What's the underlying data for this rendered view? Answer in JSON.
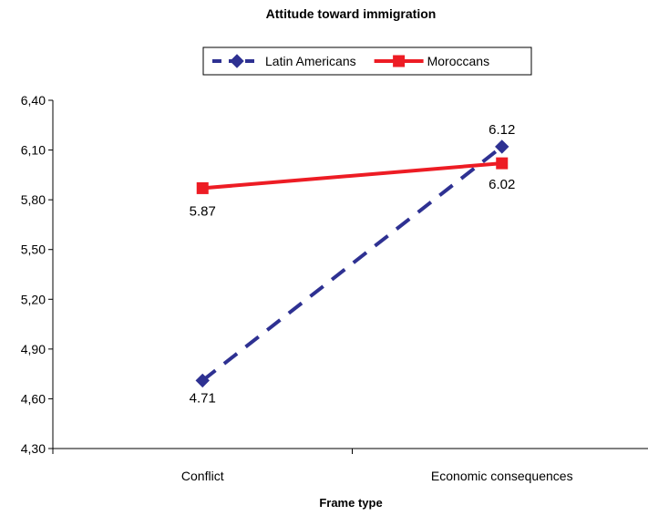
{
  "chart_data": {
    "type": "line",
    "title": "Attitude toward immigration",
    "xlabel": "Frame type",
    "ylabel": "",
    "categories": [
      "Conflict",
      "Economic consequences"
    ],
    "ylim": [
      4.3,
      6.4
    ],
    "yticks": [
      4.3,
      4.6,
      4.9,
      5.2,
      5.5,
      5.8,
      6.1,
      6.4
    ],
    "ytick_labels": [
      "4,30",
      "4,60",
      "4,90",
      "5,20",
      "5,50",
      "5,80",
      "6,10",
      "6,40"
    ],
    "grid": false,
    "legend_position": "top-center",
    "series": [
      {
        "name": "Latin Americans",
        "values": [
          4.71,
          6.12
        ],
        "data_labels": [
          "4.71",
          "6.12"
        ],
        "color": "#2E3192",
        "line_style": "dashed",
        "marker": "diamond"
      },
      {
        "name": "Moroccans",
        "values": [
          5.87,
          6.02
        ],
        "data_labels": [
          "5.87",
          "6.02"
        ],
        "color": "#ED1C24",
        "line_style": "solid",
        "marker": "square"
      }
    ]
  }
}
